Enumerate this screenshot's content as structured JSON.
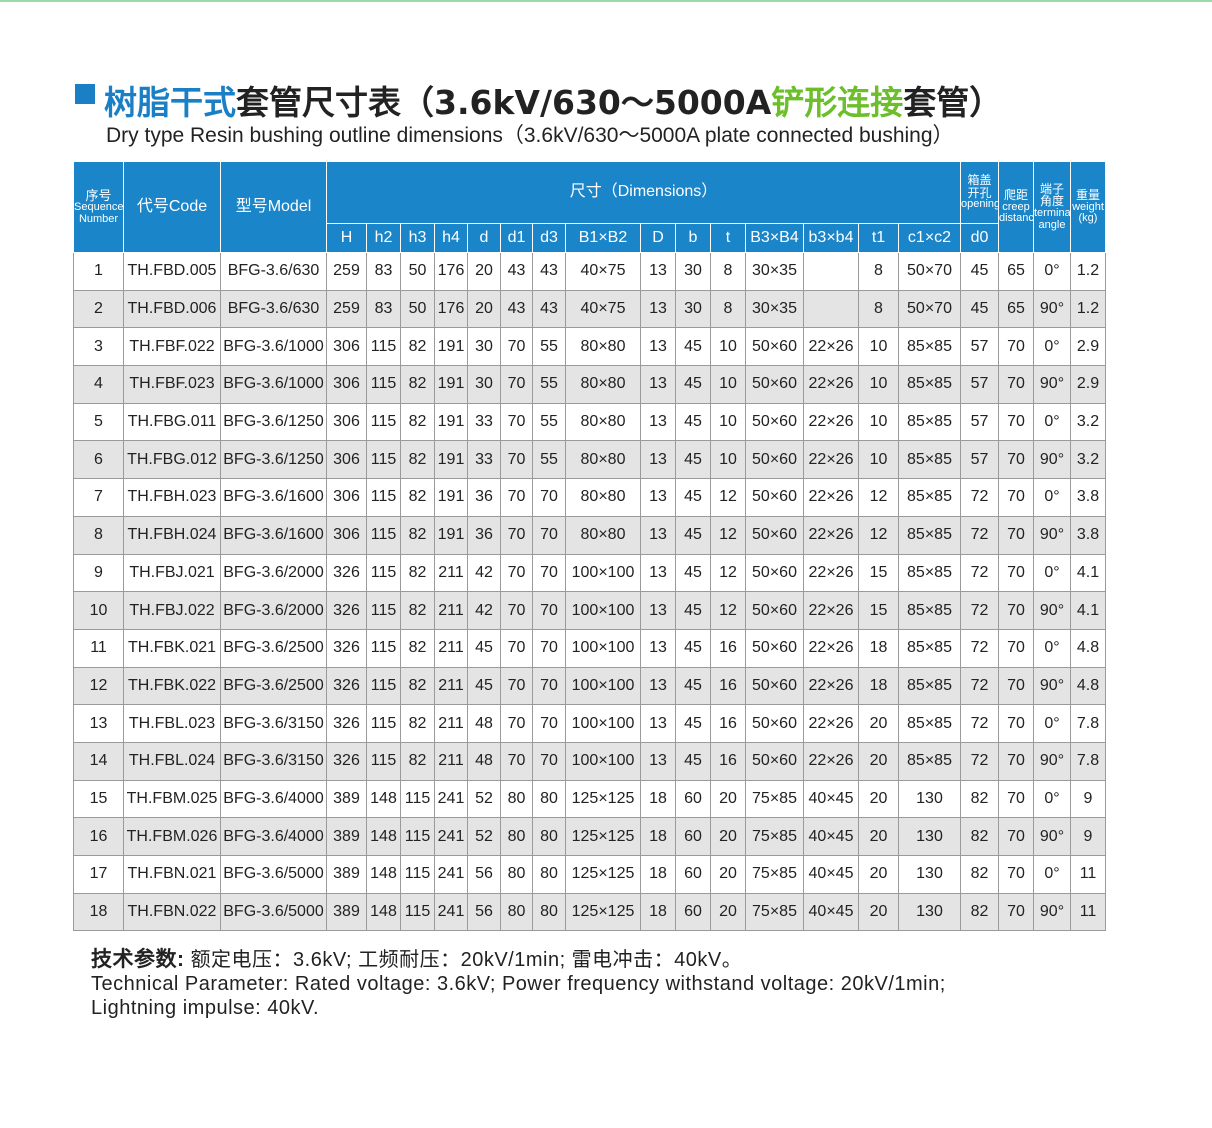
{
  "header": {
    "title_parts": [
      {
        "text": "树脂干式",
        "color": "#1a7fc4"
      },
      {
        "text": "套管尺寸表（3.6kV/630～5000A",
        "color": "#222222"
      },
      {
        "text": "铲形连接",
        "color": "#6cbf2a"
      },
      {
        "text": "套管）",
        "color": "#222222"
      }
    ],
    "subtitle": "Dry type Resin bushing outline dimensions（3.6kV/630～5000A plate connected bushing）"
  },
  "table": {
    "header": [
      {
        "lines": [
          "序号",
          "Sequence",
          "Number"
        ]
      },
      {
        "lines": [
          "代号Code"
        ]
      },
      {
        "lines": [
          "型号Model"
        ]
      },
      {
        "lines": [
          "尺寸（Dimensions）"
        ]
      },
      {
        "lines": [
          "箱盖",
          "开孔",
          "opening"
        ]
      },
      {
        "lines": [
          "爬距",
          "creep",
          "distance"
        ]
      },
      {
        "lines": [
          "端子",
          "角度",
          "terminal",
          "angle"
        ]
      },
      {
        "lines": [
          "重量",
          "weight",
          "(kg)"
        ]
      }
    ],
    "subheader": [
      "H",
      "h2",
      "h3",
      "h4",
      "d",
      "d1",
      "d3",
      "B1×B2",
      "D",
      "b",
      "t",
      "B3×B4",
      "b3×b4",
      "t1",
      "c1×c2",
      "d0"
    ],
    "rows": [
      [
        "1",
        "TH.FBD.005",
        "BFG-3.6/630",
        "259",
        "83",
        "50",
        "176",
        "20",
        "43",
        "43",
        "40×75",
        "13",
        "30",
        "8",
        "30×35",
        null,
        "8",
        "50×70",
        "45",
        "65",
        "0°",
        "1.2"
      ],
      [
        "2",
        "TH.FBD.006",
        "BFG-3.6/630",
        "259",
        "83",
        "50",
        "176",
        "20",
        "43",
        "43",
        "40×75",
        "13",
        "30",
        "8",
        "30×35",
        null,
        "8",
        "50×70",
        "45",
        "65",
        "90°",
        "1.2"
      ],
      [
        "3",
        "TH.FBF.022",
        "BFG-3.6/1000",
        "306",
        "115",
        "82",
        "191",
        "30",
        "70",
        "55",
        "80×80",
        "13",
        "45",
        "10",
        "50×60",
        "22×26",
        "10",
        "85×85",
        "57",
        "70",
        "0°",
        "2.9"
      ],
      [
        "4",
        "TH.FBF.023",
        "BFG-3.6/1000",
        "306",
        "115",
        "82",
        "191",
        "30",
        "70",
        "55",
        "80×80",
        "13",
        "45",
        "10",
        "50×60",
        "22×26",
        "10",
        "85×85",
        "57",
        "70",
        "90°",
        "2.9"
      ],
      [
        "5",
        "TH.FBG.011",
        "BFG-3.6/1250",
        "306",
        "115",
        "82",
        "191",
        "33",
        "70",
        "55",
        "80×80",
        "13",
        "45",
        "10",
        "50×60",
        "22×26",
        "10",
        "85×85",
        "57",
        "70",
        "0°",
        "3.2"
      ],
      [
        "6",
        "TH.FBG.012",
        "BFG-3.6/1250",
        "306",
        "115",
        "82",
        "191",
        "33",
        "70",
        "55",
        "80×80",
        "13",
        "45",
        "10",
        "50×60",
        "22×26",
        "10",
        "85×85",
        "57",
        "70",
        "90°",
        "3.2"
      ],
      [
        "7",
        "TH.FBH.023",
        "BFG-3.6/1600",
        "306",
        "115",
        "82",
        "191",
        "36",
        "70",
        "70",
        "80×80",
        "13",
        "45",
        "12",
        "50×60",
        "22×26",
        "12",
        "85×85",
        "72",
        "70",
        "0°",
        "3.8"
      ],
      [
        "8",
        "TH.FBH.024",
        "BFG-3.6/1600",
        "306",
        "115",
        "82",
        "191",
        "36",
        "70",
        "70",
        "80×80",
        "13",
        "45",
        "12",
        "50×60",
        "22×26",
        "12",
        "85×85",
        "72",
        "70",
        "90°",
        "3.8"
      ],
      [
        "9",
        "TH.FBJ.021",
        "BFG-3.6/2000",
        "326",
        "115",
        "82",
        "211",
        "42",
        "70",
        "70",
        "100×100",
        "13",
        "45",
        "12",
        "50×60",
        "22×26",
        "15",
        "85×85",
        "72",
        "70",
        "0°",
        "4.1"
      ],
      [
        "10",
        "TH.FBJ.022",
        "BFG-3.6/2000",
        "326",
        "115",
        "82",
        "211",
        "42",
        "70",
        "70",
        "100×100",
        "13",
        "45",
        "12",
        "50×60",
        "22×26",
        "15",
        "85×85",
        "72",
        "70",
        "90°",
        "4.1"
      ],
      [
        "11",
        "TH.FBK.021",
        "BFG-3.6/2500",
        "326",
        "115",
        "82",
        "211",
        "45",
        "70",
        "70",
        "100×100",
        "13",
        "45",
        "16",
        "50×60",
        "22×26",
        "18",
        "85×85",
        "72",
        "70",
        "0°",
        "4.8"
      ],
      [
        "12",
        "TH.FBK.022",
        "BFG-3.6/2500",
        "326",
        "115",
        "82",
        "211",
        "45",
        "70",
        "70",
        "100×100",
        "13",
        "45",
        "16",
        "50×60",
        "22×26",
        "18",
        "85×85",
        "72",
        "70",
        "90°",
        "4.8"
      ],
      [
        "13",
        "TH.FBL.023",
        "BFG-3.6/3150",
        "326",
        "115",
        "82",
        "211",
        "48",
        "70",
        "70",
        "100×100",
        "13",
        "45",
        "16",
        "50×60",
        "22×26",
        "20",
        "85×85",
        "72",
        "70",
        "0°",
        "7.8"
      ],
      [
        "14",
        "TH.FBL.024",
        "BFG-3.6/3150",
        "326",
        "115",
        "82",
        "211",
        "48",
        "70",
        "70",
        "100×100",
        "13",
        "45",
        "16",
        "50×60",
        "22×26",
        "20",
        "85×85",
        "72",
        "70",
        "90°",
        "7.8"
      ],
      [
        "15",
        "TH.FBM.025",
        "BFG-3.6/4000",
        "389",
        "148",
        "115",
        "241",
        "52",
        "80",
        "80",
        "125×125",
        "18",
        "60",
        "20",
        "75×85",
        "40×45",
        "20",
        "130",
        "82",
        "70",
        "0°",
        "9"
      ],
      [
        "16",
        "TH.FBM.026",
        "BFG-3.6/4000",
        "389",
        "148",
        "115",
        "241",
        "52",
        "80",
        "80",
        "125×125",
        "18",
        "60",
        "20",
        "75×85",
        "40×45",
        "20",
        "130",
        "82",
        "70",
        "90°",
        "9"
      ],
      [
        "17",
        "TH.FBN.021",
        "BFG-3.6/5000",
        "389",
        "148",
        "115",
        "241",
        "56",
        "80",
        "80",
        "125×125",
        "18",
        "60",
        "20",
        "75×85",
        "40×45",
        "20",
        "130",
        "82",
        "70",
        "0°",
        "11"
      ],
      [
        "18",
        "TH.FBN.022",
        "BFG-3.6/5000",
        "389",
        "148",
        "115",
        "241",
        "56",
        "80",
        "80",
        "125×125",
        "18",
        "60",
        "20",
        "75×85",
        "40×45",
        "20",
        "130",
        "82",
        "70",
        "90°",
        "11"
      ]
    ]
  },
  "footer": {
    "label": "技术参数:",
    "text_cn": "额定电压：3.6kV;  工频耐压：20kV/1min;  雷电冲击：40kV。",
    "text_en": [
      "Technical Parameter: Rated voltage: 3.6kV; Power frequency withstand voltage: 20kV/1min;",
      "Lightning impulse: 40kV."
    ]
  }
}
